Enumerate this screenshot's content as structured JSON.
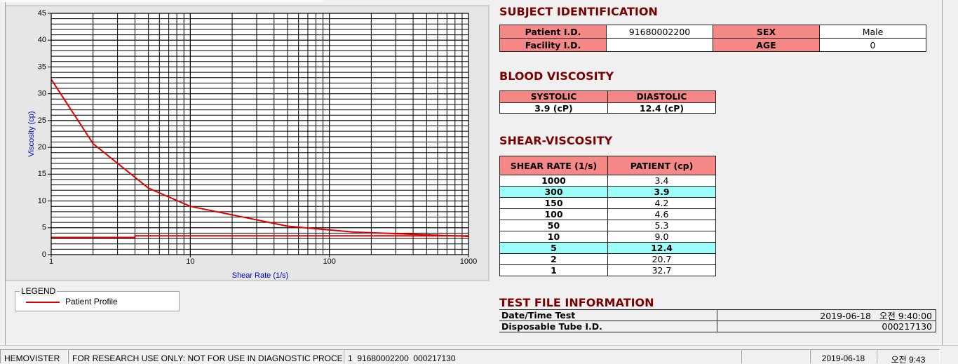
{
  "chart_data": {
    "type": "line",
    "ylabel": "Viscosity (cp)",
    "xlabel": "Shear Rate (1/s)",
    "xscale": "log",
    "xlim": [
      1,
      1000
    ],
    "ylim": [
      0,
      45
    ],
    "xticks": [
      1,
      10,
      100,
      1000
    ],
    "yticks": [
      0,
      5,
      10,
      15,
      20,
      25,
      30,
      35,
      40,
      45
    ],
    "xminorticks": [
      2,
      3,
      4,
      5,
      6,
      7,
      8,
      9,
      20,
      30,
      40,
      50,
      60,
      70,
      80,
      90,
      200,
      300,
      400,
      500,
      600,
      700,
      800,
      900
    ],
    "yminorticks": [
      1,
      2,
      3,
      4,
      6,
      7,
      8,
      9,
      11,
      12,
      13,
      14,
      16,
      17,
      18,
      19,
      21,
      22,
      23,
      24,
      26,
      27,
      28,
      29,
      31,
      32,
      33,
      34,
      36,
      37,
      38,
      39,
      41,
      42,
      43,
      44
    ],
    "grid": true,
    "legend_title": "LEGEND",
    "series": [
      {
        "name": "Patient Profile",
        "color": "#e00000",
        "x": [
          1,
          2,
          5,
          10,
          50,
          100,
          150,
          300,
          1000
        ],
        "values": [
          32.7,
          20.7,
          12.4,
          9.0,
          5.3,
          4.6,
          4.2,
          3.9,
          3.4
        ]
      },
      {
        "color": "#e00000",
        "x": [
          1,
          4,
          4,
          1000
        ],
        "values": [
          3.2,
          3.2,
          3.5,
          3.5
        ]
      }
    ]
  },
  "subject_identification": {
    "title": "SUBJECT IDENTIFICATION",
    "rows": [
      [
        {
          "label": "Patient I.D.",
          "value": "91680002200"
        },
        {
          "label": "SEX",
          "value": "Male"
        }
      ],
      [
        {
          "label": "Facility I.D."
        },
        {
          "label": "AGE",
          "value": "0"
        }
      ]
    ]
  },
  "blood_viscosity": {
    "title": "BLOOD VISCOSITY",
    "headers": [
      "SYSTOLIC",
      "DIASTOLIC"
    ],
    "values": [
      "3.9 (cP)",
      "12.4 (cP)"
    ]
  },
  "shear_viscosity": {
    "title": "SHEAR-VISCOSITY",
    "headers": [
      "SHEAR RATE (1/s)",
      "PATIENT (cp)"
    ],
    "rows": [
      {
        "cells": [
          "1000",
          "3.4"
        ]
      },
      {
        "cells": [
          "300",
          "3.9"
        ],
        "highlighted": true
      },
      {
        "cells": [
          "150",
          "4.2"
        ]
      },
      {
        "cells": [
          "100",
          "4.6"
        ]
      },
      {
        "cells": [
          "50",
          "5.3"
        ]
      },
      {
        "cells": [
          "10",
          "9.0"
        ]
      },
      {
        "cells": [
          "5",
          "12.4"
        ],
        "highlighted": true
      },
      {
        "cells": [
          "2",
          "20.7"
        ]
      },
      {
        "cells": [
          "1",
          "32.7"
        ]
      }
    ]
  },
  "test_file_information": {
    "title": "TEST FILE INFORMATION",
    "rows": [
      [
        "Date/Time Test",
        "2019-06-18   오전 9:40:00"
      ],
      [
        "Disposable Tube I.D.",
        "000217130"
      ]
    ]
  },
  "status_bar": [
    "HEMOVISTER",
    "FOR RESEARCH USE ONLY: NOT FOR USE IN DIAGNOSTIC PROCEDURES",
    "1  91680002200  000217130",
    "2019-06-18",
    "오전 9:43"
  ]
}
